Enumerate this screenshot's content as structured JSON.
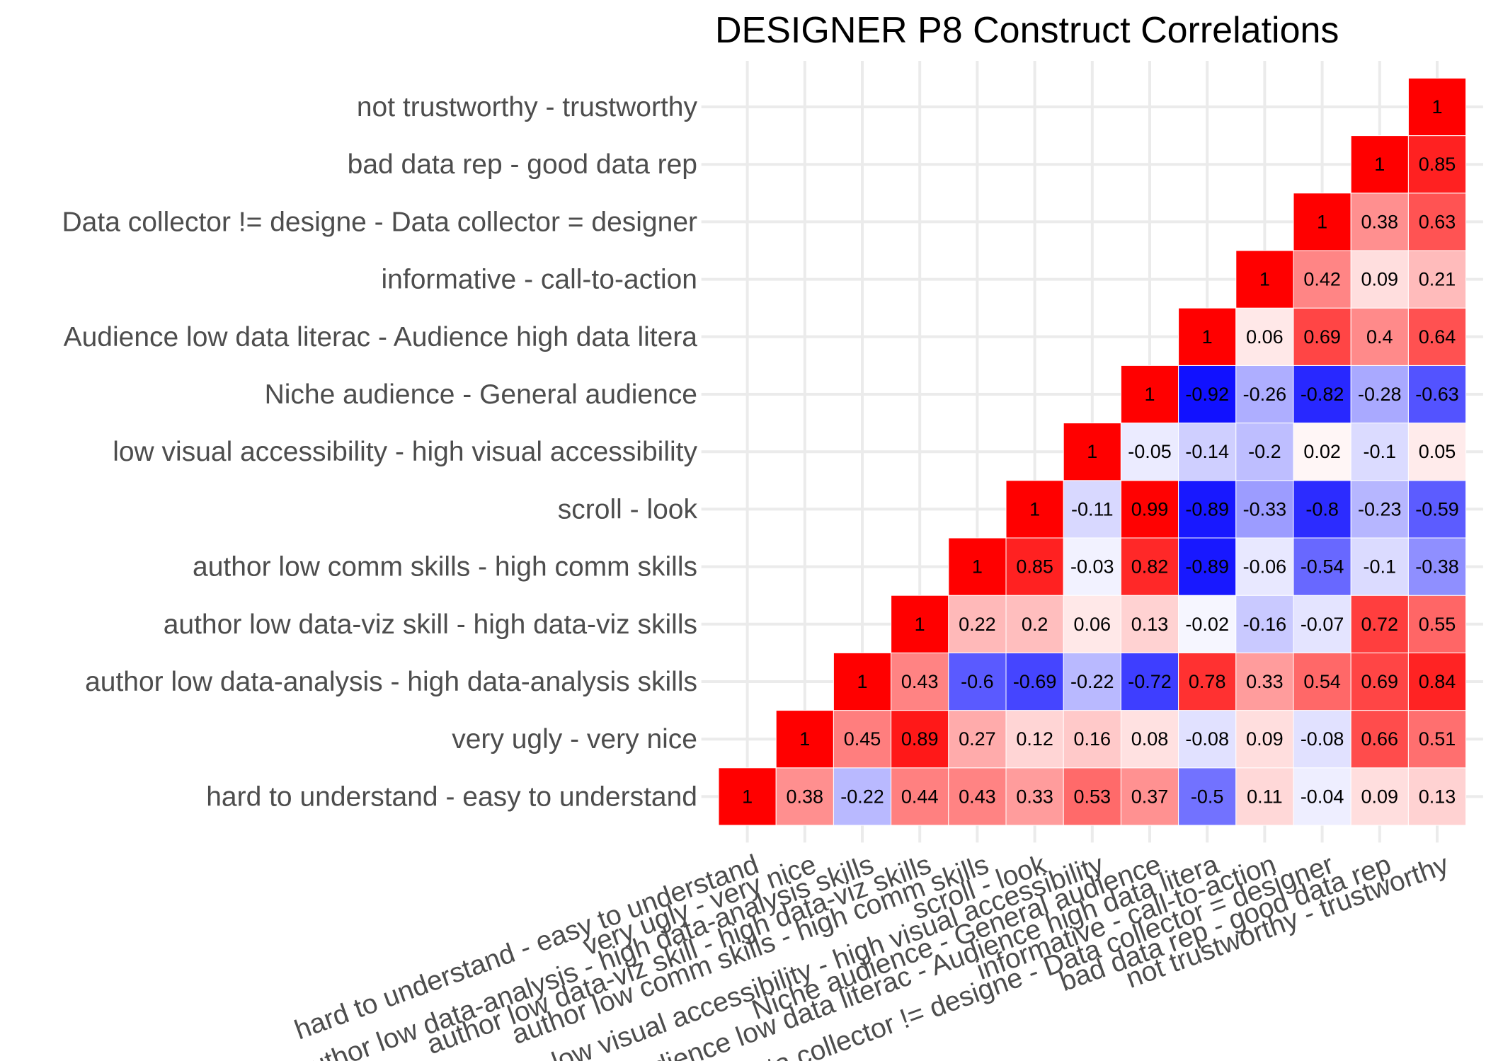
{
  "chart_data": {
    "type": "heatmap",
    "title": "DESIGNER P8 Construct Correlations",
    "xlabel": "",
    "ylabel": "",
    "constructs": [
      "hard to understand - easy to understand",
      "very ugly  - very nice",
      "author low data-analysis  - high data-analysis skills",
      "author low data-viz skill - high data-viz skills",
      "author low comm skills - high comm skills",
      "scroll - look",
      "low visual accessibility - high visual accessibility",
      "Niche audience - General audience",
      "Audience low data literac - Audience high data litera",
      "informative - call-to-action",
      "Data collector != designe - Data collector = designer",
      "bad data rep - good data rep",
      "not trustworthy - trustworthy"
    ],
    "cells": [
      {
        "x": 0,
        "y": 0,
        "v": 1,
        "label": "1"
      },
      {
        "x": 1,
        "y": 0,
        "v": 0.38,
        "label": "0.38"
      },
      {
        "x": 2,
        "y": 0,
        "v": -0.22,
        "label": "-0.22"
      },
      {
        "x": 3,
        "y": 0,
        "v": 0.44,
        "label": "0.44"
      },
      {
        "x": 4,
        "y": 0,
        "v": 0.43,
        "label": "0.43"
      },
      {
        "x": 5,
        "y": 0,
        "v": 0.33,
        "label": "0.33"
      },
      {
        "x": 6,
        "y": 0,
        "v": 0.53,
        "label": "0.53"
      },
      {
        "x": 7,
        "y": 0,
        "v": 0.37,
        "label": "0.37"
      },
      {
        "x": 8,
        "y": 0,
        "v": -0.5,
        "label": "-0.5"
      },
      {
        "x": 9,
        "y": 0,
        "v": 0.11,
        "label": "0.11"
      },
      {
        "x": 10,
        "y": 0,
        "v": -0.04,
        "label": "-0.04"
      },
      {
        "x": 11,
        "y": 0,
        "v": 0.09,
        "label": "0.09"
      },
      {
        "x": 12,
        "y": 0,
        "v": 0.13,
        "label": "0.13"
      },
      {
        "x": 1,
        "y": 1,
        "v": 1,
        "label": "1"
      },
      {
        "x": 2,
        "y": 1,
        "v": 0.45,
        "label": "0.45"
      },
      {
        "x": 3,
        "y": 1,
        "v": 0.89,
        "label": "0.89"
      },
      {
        "x": 4,
        "y": 1,
        "v": 0.27,
        "label": "0.27"
      },
      {
        "x": 5,
        "y": 1,
        "v": 0.12,
        "label": "0.12"
      },
      {
        "x": 6,
        "y": 1,
        "v": 0.16,
        "label": "0.16"
      },
      {
        "x": 7,
        "y": 1,
        "v": 0.08,
        "label": "0.08"
      },
      {
        "x": 8,
        "y": 1,
        "v": -0.08,
        "label": "-0.08"
      },
      {
        "x": 9,
        "y": 1,
        "v": 0.09,
        "label": "0.09"
      },
      {
        "x": 10,
        "y": 1,
        "v": -0.08,
        "label": "-0.08"
      },
      {
        "x": 11,
        "y": 1,
        "v": 0.66,
        "label": "0.66"
      },
      {
        "x": 12,
        "y": 1,
        "v": 0.51,
        "label": "0.51"
      },
      {
        "x": 2,
        "y": 2,
        "v": 1,
        "label": "1"
      },
      {
        "x": 3,
        "y": 2,
        "v": 0.43,
        "label": "0.43"
      },
      {
        "x": 4,
        "y": 2,
        "v": -0.6,
        "label": "-0.6"
      },
      {
        "x": 5,
        "y": 2,
        "v": -0.69,
        "label": "-0.69"
      },
      {
        "x": 6,
        "y": 2,
        "v": -0.22,
        "label": "-0.22"
      },
      {
        "x": 7,
        "y": 2,
        "v": -0.72,
        "label": "-0.72"
      },
      {
        "x": 8,
        "y": 2,
        "v": 0.78,
        "label": "0.78"
      },
      {
        "x": 9,
        "y": 2,
        "v": 0.33,
        "label": "0.33"
      },
      {
        "x": 10,
        "y": 2,
        "v": 0.54,
        "label": "0.54"
      },
      {
        "x": 11,
        "y": 2,
        "v": 0.69,
        "label": "0.69"
      },
      {
        "x": 12,
        "y": 2,
        "v": 0.84,
        "label": "0.84"
      },
      {
        "x": 3,
        "y": 3,
        "v": 1,
        "label": "1"
      },
      {
        "x": 4,
        "y": 3,
        "v": 0.22,
        "label": "0.22"
      },
      {
        "x": 5,
        "y": 3,
        "v": 0.2,
        "label": "0.2"
      },
      {
        "x": 6,
        "y": 3,
        "v": 0.06,
        "label": "0.06"
      },
      {
        "x": 7,
        "y": 3,
        "v": 0.13,
        "label": "0.13"
      },
      {
        "x": 8,
        "y": 3,
        "v": -0.02,
        "label": "-0.02"
      },
      {
        "x": 9,
        "y": 3,
        "v": -0.16,
        "label": "-0.16"
      },
      {
        "x": 10,
        "y": 3,
        "v": -0.07,
        "label": "-0.07"
      },
      {
        "x": 11,
        "y": 3,
        "v": 0.72,
        "label": "0.72"
      },
      {
        "x": 12,
        "y": 3,
        "v": 0.55,
        "label": "0.55"
      },
      {
        "x": 4,
        "y": 4,
        "v": 1,
        "label": "1"
      },
      {
        "x": 5,
        "y": 4,
        "v": 0.85,
        "label": "0.85"
      },
      {
        "x": 6,
        "y": 4,
        "v": -0.03,
        "label": "-0.03"
      },
      {
        "x": 7,
        "y": 4,
        "v": 0.82,
        "label": "0.82"
      },
      {
        "x": 8,
        "y": 4,
        "v": -0.89,
        "label": "-0.89"
      },
      {
        "x": 9,
        "y": 4,
        "v": -0.06,
        "label": "-0.06"
      },
      {
        "x": 10,
        "y": 4,
        "v": -0.54,
        "label": "-0.54"
      },
      {
        "x": 11,
        "y": 4,
        "v": -0.1,
        "label": "-0.1"
      },
      {
        "x": 12,
        "y": 4,
        "v": -0.38,
        "label": "-0.38"
      },
      {
        "x": 5,
        "y": 5,
        "v": 1,
        "label": "1"
      },
      {
        "x": 6,
        "y": 5,
        "v": -0.11,
        "label": "-0.11"
      },
      {
        "x": 7,
        "y": 5,
        "v": 0.99,
        "label": "0.99"
      },
      {
        "x": 8,
        "y": 5,
        "v": -0.89,
        "label": "-0.89"
      },
      {
        "x": 9,
        "y": 5,
        "v": -0.33,
        "label": "-0.33"
      },
      {
        "x": 10,
        "y": 5,
        "v": -0.8,
        "label": "-0.8"
      },
      {
        "x": 11,
        "y": 5,
        "v": -0.23,
        "label": "-0.23"
      },
      {
        "x": 12,
        "y": 5,
        "v": -0.59,
        "label": "-0.59"
      },
      {
        "x": 6,
        "y": 6,
        "v": 1,
        "label": "1"
      },
      {
        "x": 7,
        "y": 6,
        "v": -0.05,
        "label": "-0.05"
      },
      {
        "x": 8,
        "y": 6,
        "v": -0.14,
        "label": "-0.14"
      },
      {
        "x": 9,
        "y": 6,
        "v": -0.2,
        "label": "-0.2"
      },
      {
        "x": 10,
        "y": 6,
        "v": 0.02,
        "label": "0.02"
      },
      {
        "x": 11,
        "y": 6,
        "v": -0.1,
        "label": "-0.1"
      },
      {
        "x": 12,
        "y": 6,
        "v": 0.05,
        "label": "0.05"
      },
      {
        "x": 7,
        "y": 7,
        "v": 1,
        "label": "1"
      },
      {
        "x": 8,
        "y": 7,
        "v": -0.92,
        "label": "-0.92"
      },
      {
        "x": 9,
        "y": 7,
        "v": -0.26,
        "label": "-0.26"
      },
      {
        "x": 10,
        "y": 7,
        "v": -0.82,
        "label": "-0.82"
      },
      {
        "x": 11,
        "y": 7,
        "v": -0.28,
        "label": "-0.28"
      },
      {
        "x": 12,
        "y": 7,
        "v": -0.63,
        "label": "-0.63"
      },
      {
        "x": 8,
        "y": 8,
        "v": 1,
        "label": "1"
      },
      {
        "x": 9,
        "y": 8,
        "v": 0.06,
        "label": "0.06"
      },
      {
        "x": 10,
        "y": 8,
        "v": 0.69,
        "label": "0.69"
      },
      {
        "x": 11,
        "y": 8,
        "v": 0.4,
        "label": "0.4"
      },
      {
        "x": 12,
        "y": 8,
        "v": 0.64,
        "label": "0.64"
      },
      {
        "x": 9,
        "y": 9,
        "v": 1,
        "label": "1"
      },
      {
        "x": 10,
        "y": 9,
        "v": 0.42,
        "label": "0.42"
      },
      {
        "x": 11,
        "y": 9,
        "v": 0.09,
        "label": "0.09"
      },
      {
        "x": 12,
        "y": 9,
        "v": 0.21,
        "label": "0.21"
      },
      {
        "x": 10,
        "y": 10,
        "v": 1,
        "label": "1"
      },
      {
        "x": 11,
        "y": 10,
        "v": 0.38,
        "label": "0.38"
      },
      {
        "x": 12,
        "y": 10,
        "v": 0.63,
        "label": "0.63"
      },
      {
        "x": 11,
        "y": 11,
        "v": 1,
        "label": "1"
      },
      {
        "x": 12,
        "y": 11,
        "v": 0.85,
        "label": "0.85"
      },
      {
        "x": 12,
        "y": 12,
        "v": 1,
        "label": "1"
      }
    ],
    "color_scale": {
      "low": "#0000ff",
      "mid": "#ffffff",
      "high": "#ff0000",
      "limits": [
        -1,
        1
      ]
    },
    "grid": true,
    "legend": "none"
  }
}
